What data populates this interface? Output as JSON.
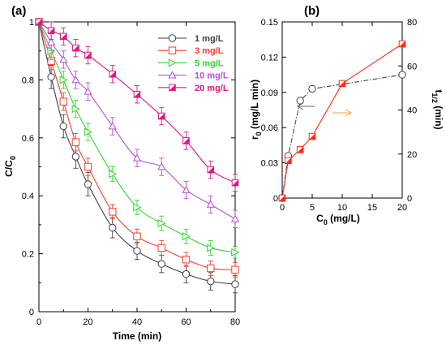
{
  "chart_data": [
    {
      "type": "line",
      "panel_label": "(a)",
      "xlabel": "Time (min)",
      "ylabel": "C/C",
      "ylabel_subscript": "0",
      "xlim": [
        0,
        80
      ],
      "ylim": [
        0,
        1.0
      ],
      "xticks": [
        0,
        20,
        40,
        60,
        80
      ],
      "yticks": [
        0,
        0.2,
        0.4,
        0.6,
        0.8,
        1
      ],
      "xtick_labels": [
        "0",
        "20",
        "40",
        "60",
        "80"
      ],
      "ytick_labels": [
        "0",
        "0.2",
        "0.4",
        "0.6",
        "0.8",
        "1"
      ],
      "legend_position": "top-right",
      "x": [
        0,
        5,
        10,
        15,
        20,
        30,
        40,
        50,
        60,
        70,
        80
      ],
      "series": [
        {
          "name": "1 mg/L",
          "color": "#404040",
          "marker": "circle",
          "values": [
            1.0,
            0.81,
            0.64,
            0.535,
            0.44,
            0.29,
            0.21,
            0.165,
            0.13,
            0.105,
            0.095
          ],
          "errors": [
            0,
            0.04,
            0.04,
            0.04,
            0.04,
            0.035,
            0.03,
            0.03,
            0.03,
            0.03,
            0.03
          ]
        },
        {
          "name": "3 mg/L",
          "color": "#ff3b2f",
          "marker": "square",
          "values": [
            1.0,
            0.865,
            0.725,
            0.585,
            0.5,
            0.345,
            0.26,
            0.22,
            0.18,
            0.15,
            0.145
          ],
          "errors": [
            0,
            0.03,
            0.03,
            0.03,
            0.03,
            0.025,
            0.025,
            0.025,
            0.025,
            0.025,
            0.025
          ]
        },
        {
          "name": "5 mg/L",
          "color": "#33d633",
          "marker": "triangle-right",
          "values": [
            1.0,
            0.9,
            0.8,
            0.7,
            0.62,
            0.475,
            0.36,
            0.305,
            0.26,
            0.22,
            0.205
          ],
          "errors": [
            0,
            0.03,
            0.03,
            0.03,
            0.03,
            0.025,
            0.025,
            0.025,
            0.025,
            0.025,
            0.02
          ]
        },
        {
          "name": "10 mg/L",
          "color": "#b650d8",
          "marker": "triangle-up",
          "values": [
            1.0,
            0.93,
            0.87,
            0.8,
            0.76,
            0.64,
            0.53,
            0.5,
            0.42,
            0.37,
            0.32
          ],
          "errors": [
            0,
            0.03,
            0.03,
            0.03,
            0.03,
            0.03,
            0.03,
            0.03,
            0.03,
            0.03,
            0.03
          ]
        },
        {
          "name": "20 mg/L",
          "color": "#e0187e",
          "marker": "half-filled-square",
          "values": [
            1.0,
            0.97,
            0.95,
            0.91,
            0.885,
            0.82,
            0.75,
            0.675,
            0.59,
            0.49,
            0.445
          ],
          "errors": [
            0,
            0.03,
            0.03,
            0.03,
            0.03,
            0.03,
            0.03,
            0.03,
            0.03,
            0.03,
            0.03
          ]
        }
      ]
    },
    {
      "type": "line",
      "panel_label": "(b)",
      "xlabel": "C",
      "xlabel_subscript": "0",
      "xlabel_suffix": " (mg/L)",
      "ylabel_left": "r",
      "ylabel_left_subscript": "0",
      "ylabel_left_suffix": " (mg/L min)",
      "ylabel_right": "t",
      "ylabel_right_subscript": "1/2",
      "ylabel_right_suffix": " (min)",
      "xlim": [
        0,
        20
      ],
      "ylim_left": [
        0,
        0.15
      ],
      "ylim_right": [
        0,
        80
      ],
      "xticks": [
        0,
        5,
        10,
        15,
        20
      ],
      "xtick_labels": [
        "0",
        "5",
        "10",
        "15",
        "20"
      ],
      "yticks_left": [
        0,
        0.03,
        0.06,
        0.09,
        0.12,
        0.15
      ],
      "ytick_labels_left": [
        "0",
        "0.03",
        "0.06",
        "0.09",
        "0.12",
        "0.15"
      ],
      "yticks_right": [
        0,
        20,
        40,
        60,
        80
      ],
      "ytick_labels_right": [
        "0",
        "20",
        "40",
        "60",
        "80"
      ],
      "series": [
        {
          "axis": "left",
          "color": "#444444",
          "marker": "circle",
          "line_style": "dash-dot",
          "x": [
            0,
            1,
            3,
            5,
            20
          ],
          "values": [
            0,
            0.036,
            0.083,
            0.093,
            0.105
          ]
        },
        {
          "axis": "right",
          "color": "#ff2a1a",
          "marker": "half-filled-square",
          "line_style": "solid",
          "x": [
            0,
            1,
            3,
            5,
            10,
            20
          ],
          "values": [
            0,
            17,
            22,
            28,
            52,
            70
          ]
        }
      ],
      "annotations": [
        {
          "kind": "arrow",
          "direction": "left",
          "color": "#666666",
          "points_to_axis": "left"
        },
        {
          "kind": "arrow",
          "direction": "right",
          "color": "#f4a04a",
          "points_to_axis": "right"
        }
      ]
    }
  ]
}
